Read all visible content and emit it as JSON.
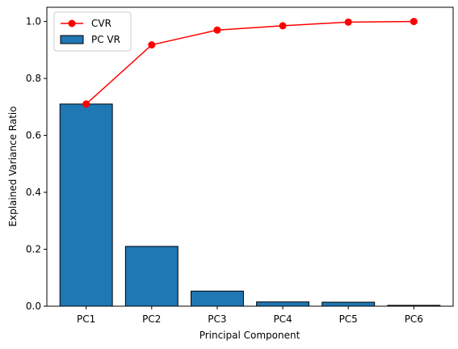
{
  "chart_data": {
    "type": "bar",
    "categories": [
      "PC1",
      "PC2",
      "PC3",
      "PC4",
      "PC5",
      "PC6"
    ],
    "series": [
      {
        "name": "PC VR",
        "type": "bar",
        "values": [
          0.71,
          0.21,
          0.053,
          0.015,
          0.014,
          0.003
        ],
        "color": "#1f77b4",
        "edgecolor": "#000000"
      },
      {
        "name": "CVR",
        "type": "line",
        "values": [
          0.71,
          0.918,
          0.97,
          0.985,
          0.998,
          1.0
        ],
        "color": "#ff0000",
        "marker": "circle"
      }
    ],
    "title": "",
    "xlabel": "Principal Component",
    "ylabel": "Explained Variance Ratio",
    "ylim": [
      0,
      1.05
    ],
    "yticks": [
      0.0,
      0.2,
      0.4,
      0.6,
      0.8,
      1.0
    ],
    "ytick_labels": [
      "0.0",
      "0.2",
      "0.4",
      "0.6",
      "0.8",
      "1.0"
    ],
    "grid": false,
    "legend_position": "top-left"
  }
}
